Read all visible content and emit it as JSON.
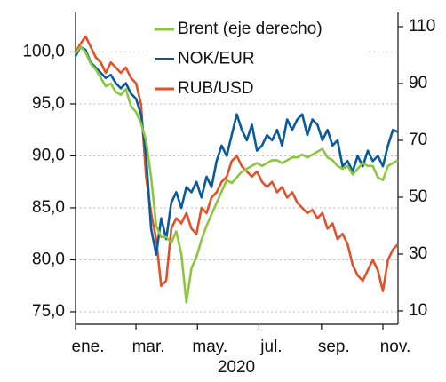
{
  "chart_data": {
    "type": "line",
    "xlabel": "2020",
    "xlim": [
      0,
      320
    ],
    "xticks": [
      {
        "value": 0,
        "label": "ene."
      },
      {
        "value": 60,
        "label": "mar."
      },
      {
        "value": 121,
        "label": "may."
      },
      {
        "value": 182,
        "label": "jul."
      },
      {
        "value": 244,
        "label": "sep."
      },
      {
        "value": 305,
        "label": "nov."
      }
    ],
    "ylim": [
      73.8,
      103.8
    ],
    "yticks": [
      {
        "value": 75,
        "label": "75,0"
      },
      {
        "value": 80,
        "label": "80,0"
      },
      {
        "value": 85,
        "label": "85,0"
      },
      {
        "value": 90,
        "label": "90,0"
      },
      {
        "value": 95,
        "label": "95,0"
      },
      {
        "value": 100,
        "label": "100,0"
      }
    ],
    "y2lim": [
      5.3,
      115
    ],
    "y2ticks": [
      10,
      30,
      50,
      70,
      90,
      110
    ],
    "grid": true,
    "legend": "top",
    "x": [
      0,
      5,
      10,
      15,
      20,
      25,
      30,
      35,
      40,
      45,
      50,
      55,
      60,
      65,
      70,
      75,
      80,
      85,
      90,
      95,
      100,
      105,
      110,
      115,
      120,
      125,
      130,
      135,
      140,
      145,
      150,
      155,
      160,
      165,
      170,
      175,
      180,
      185,
      190,
      195,
      200,
      205,
      210,
      215,
      220,
      225,
      230,
      235,
      240,
      245,
      250,
      255,
      260,
      265,
      270,
      275,
      280,
      285,
      290,
      295,
      300,
      305,
      310,
      315,
      320
    ],
    "series": [
      {
        "name": "Brent (eje derecho)",
        "color": "#8cc63f",
        "axis": "y2",
        "values": [
          100.6,
          103,
          101,
          97,
          95,
          92,
          89,
          90,
          87,
          86,
          88,
          82,
          80,
          76,
          70,
          57,
          40,
          36,
          36,
          34,
          38,
          30,
          13,
          25,
          29,
          35,
          40,
          44,
          48,
          52,
          56,
          55,
          57,
          59,
          60,
          61,
          62,
          61,
          62,
          63,
          63,
          62,
          63,
          64,
          64,
          65,
          64,
          65,
          66,
          67,
          64,
          63,
          61,
          60,
          61,
          58,
          60,
          62,
          61,
          61,
          57,
          56,
          61,
          62,
          63
        ]
      },
      {
        "name": "NOK/EUR",
        "color": "#0a5a9c",
        "values": [
          99.6,
          100.5,
          100.2,
          99.0,
          98.5,
          98.0,
          97.5,
          97.8,
          97.0,
          96.5,
          97.0,
          96.0,
          95.5,
          94.0,
          90.0,
          83.0,
          80.5,
          84.0,
          82.0,
          85.5,
          86.5,
          85.0,
          87.0,
          86.5,
          87.5,
          86.0,
          88.0,
          87.0,
          89.5,
          91.0,
          90.0,
          92.0,
          94.0,
          92.5,
          91.5,
          93.0,
          90.5,
          91.0,
          92.0,
          91.5,
          92.5,
          91.0,
          93.5,
          92.5,
          93.5,
          94.0,
          92.0,
          93.5,
          93.0,
          91.5,
          92.5,
          91.0,
          91.5,
          89.0,
          89.5,
          88.5,
          90.0,
          89.0,
          90.5,
          89.5,
          90.0,
          89.0,
          91.0,
          92.5,
          92.3
        ]
      },
      {
        "name": "RUB/USD",
        "color": "#e0522a",
        "values": [
          100.0,
          100.8,
          101.5,
          100.5,
          99.5,
          99.0,
          98.0,
          99.0,
          98.5,
          98.0,
          98.5,
          97.5,
          97.0,
          95.0,
          88.0,
          84.5,
          82.0,
          77.5,
          78.0,
          83.0,
          84.0,
          83.5,
          84.5,
          83.0,
          82.5,
          85.0,
          84.5,
          86.0,
          86.5,
          87.5,
          88.0,
          89.5,
          90.0,
          89.0,
          88.5,
          88.0,
          88.5,
          87.5,
          87.0,
          87.5,
          86.5,
          87.0,
          86.0,
          86.5,
          85.5,
          85.0,
          84.5,
          84.8,
          84.0,
          84.5,
          83.0,
          83.5,
          82.0,
          82.5,
          81.5,
          79.5,
          78.5,
          78.0,
          79.0,
          80.0,
          79.0,
          77.0,
          80.0,
          81.0,
          81.5
        ]
      }
    ]
  }
}
